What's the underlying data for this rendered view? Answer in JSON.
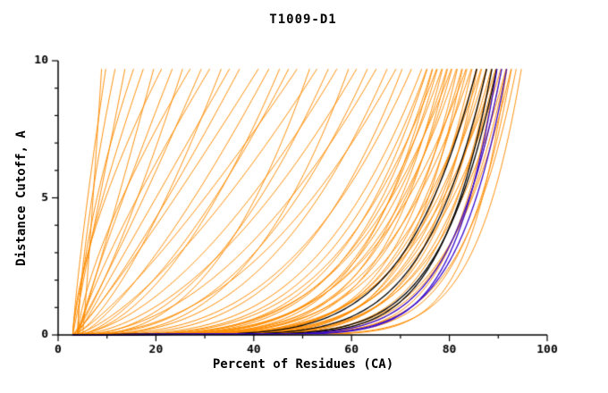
{
  "chart_data": {
    "type": "line",
    "title": "T1009-D1",
    "xlabel": "Percent of Residues (CA)",
    "ylabel": "Distance Cutoff, A",
    "xlim": [
      0,
      100
    ],
    "ylim": [
      0,
      10
    ],
    "x_major_ticks": [
      0,
      20,
      40,
      60,
      80,
      100
    ],
    "x_minor_step": 10,
    "y_major_ticks": [
      0,
      5,
      10
    ],
    "y_minor_step": 1,
    "grid": "off",
    "legend": "none",
    "curve_model": "x(y) = x0 + (xtop - x0) * (y / 10) ^ a ; each curve listed as [x0, xtop, a]",
    "y_top_of_curves": 9.7,
    "groups": [
      {
        "name": "server-models-orange",
        "color": "#ff8c00",
        "width": 1,
        "curves": [
          [
            3,
            95,
            0.1
          ],
          [
            3,
            94,
            0.12
          ],
          [
            4,
            93,
            0.11
          ],
          [
            3,
            93,
            0.14
          ],
          [
            4,
            92,
            0.13
          ],
          [
            3,
            92,
            0.16
          ],
          [
            4,
            91,
            0.12
          ],
          [
            3,
            91,
            0.18
          ],
          [
            4,
            90,
            0.15
          ],
          [
            3,
            90,
            0.2
          ],
          [
            4,
            89,
            0.13
          ],
          [
            3,
            89,
            0.17
          ],
          [
            4,
            88,
            0.19
          ],
          [
            3,
            88,
            0.14
          ],
          [
            4,
            87,
            0.16
          ],
          [
            3,
            87,
            0.21
          ],
          [
            4,
            86,
            0.13
          ],
          [
            3,
            86,
            0.18
          ],
          [
            4,
            85,
            0.22
          ],
          [
            3,
            85,
            0.15
          ],
          [
            4,
            84,
            0.17
          ],
          [
            3,
            84,
            0.24
          ],
          [
            4,
            83,
            0.14
          ],
          [
            3,
            83,
            0.19
          ],
          [
            4,
            82,
            0.23
          ],
          [
            3,
            82,
            0.16
          ],
          [
            4,
            81,
            0.2
          ],
          [
            3,
            81,
            0.26
          ],
          [
            4,
            80,
            0.17
          ],
          [
            3,
            80,
            0.22
          ],
          [
            4,
            79,
            0.25
          ],
          [
            3,
            79,
            0.18
          ],
          [
            4,
            78,
            0.21
          ],
          [
            3,
            78,
            0.27
          ],
          [
            4,
            77,
            0.23
          ],
          [
            3,
            77,
            0.19
          ],
          [
            4,
            76,
            0.28
          ],
          [
            3,
            76,
            0.24
          ],
          [
            5,
            92,
            0.09
          ],
          [
            5,
            90,
            0.11
          ],
          [
            4,
            75,
            0.3
          ],
          [
            3,
            73,
            0.35
          ],
          [
            4,
            71,
            0.32
          ],
          [
            3,
            70,
            0.45
          ],
          [
            4,
            68,
            0.38
          ],
          [
            3,
            66,
            0.5
          ],
          [
            4,
            64,
            0.42
          ],
          [
            3,
            62,
            0.55
          ],
          [
            4,
            60,
            0.36
          ],
          [
            3,
            58,
            0.6
          ],
          [
            4,
            56,
            0.48
          ],
          [
            3,
            54,
            0.7
          ],
          [
            4,
            52,
            0.4
          ],
          [
            3,
            50,
            0.8
          ],
          [
            4,
            48,
            0.65
          ],
          [
            3,
            46,
            0.55
          ],
          [
            4,
            44,
            0.75
          ],
          [
            3,
            42,
            0.9
          ],
          [
            3,
            38,
            0.85
          ],
          [
            4,
            36,
            1.0
          ],
          [
            3,
            34,
            0.7
          ],
          [
            4,
            32,
            1.2
          ],
          [
            3,
            30,
            0.9
          ],
          [
            4,
            28,
            1.4
          ],
          [
            3,
            26,
            0.8
          ],
          [
            4,
            24,
            1.1
          ],
          [
            3,
            22,
            1.5
          ],
          [
            4,
            20,
            0.95
          ],
          [
            3,
            18,
            1.3
          ],
          [
            4,
            16,
            1.6
          ],
          [
            3,
            14,
            1.0
          ],
          [
            4,
            12,
            1.45
          ],
          [
            3,
            10,
            1.2
          ],
          [
            5,
            9,
            0.9
          ]
        ]
      },
      {
        "name": "reference-models-black",
        "color": "#000000",
        "width": 1.3,
        "curves": [
          [
            3,
            90,
            0.13
          ],
          [
            4,
            88,
            0.15
          ],
          [
            3,
            86,
            0.17
          ],
          [
            4,
            89,
            0.12
          ]
        ]
      },
      {
        "name": "best-models-blue",
        "color": "#3a0dd0",
        "width": 1.3,
        "curves": [
          [
            3,
            92,
            0.11
          ],
          [
            4,
            91,
            0.12
          ],
          [
            3,
            90,
            0.1
          ]
        ]
      }
    ]
  }
}
